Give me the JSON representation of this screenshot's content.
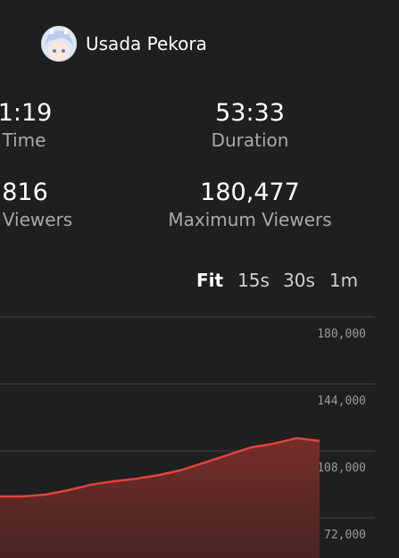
{
  "header": {
    "name": "Usada Pekora"
  },
  "stats": [
    {
      "value": "1:19",
      "label": "Time"
    },
    {
      "value": "53:33",
      "label": "Duration"
    },
    {
      "value": "816",
      "label": "Viewers"
    },
    {
      "value": "180,477",
      "label": "Maximum Viewers"
    }
  ],
  "intervals": {
    "options": [
      "Fit",
      "15s",
      "30s",
      "1m"
    ],
    "selected": 0
  },
  "chart_data": {
    "type": "area",
    "categories": [
      null,
      null,
      null,
      null,
      null,
      null,
      null,
      null,
      null,
      null,
      null,
      null,
      null,
      null,
      null
    ],
    "series": [
      {
        "color": "#e0443a",
        "values": [
          83520,
          83520,
          84480,
          86880,
          89880,
          91680,
          93080,
          95080,
          97880,
          101880,
          105880,
          109880,
          111880,
          114880,
          113280
        ]
      }
    ],
    "ylim": [
      50400,
      180000
    ],
    "yticks": [
      {
        "value": 180000,
        "label": "180,000"
      },
      {
        "value": 144000,
        "label": "144,000"
      },
      {
        "value": 108000,
        "label": "108,000"
      },
      {
        "value": 72000,
        "label": "72,000"
      }
    ],
    "grid": true
  }
}
